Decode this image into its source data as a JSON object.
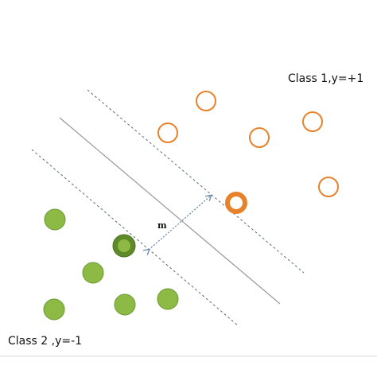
{
  "labels": {
    "class1": "Class 1,y=+1",
    "class2": "Class 2 ,y=-1",
    "margin": "m"
  }
}
